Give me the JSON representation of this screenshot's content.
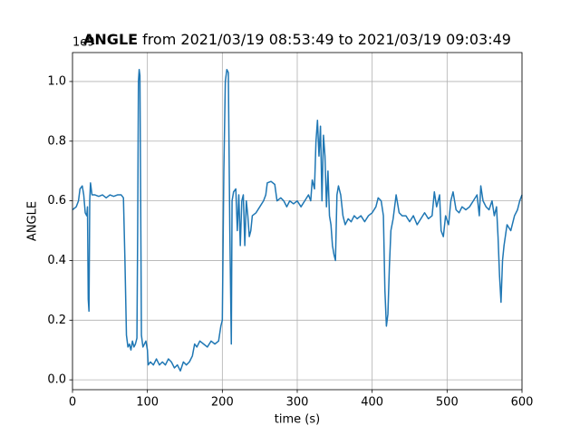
{
  "chart_data": {
    "type": "line",
    "title": "ANGLE",
    "title_suffix": "from 2021/03/19 08:53:49 to 2021/03/19 09:03:49",
    "offset_text": "1e9",
    "x_label": "time (s)",
    "y_label": "ANGLE",
    "xlim": [
      0,
      600
    ],
    "xticks": [
      0,
      100,
      200,
      300,
      400,
      500,
      600
    ],
    "ylim": [
      -0.033,
      1.097
    ],
    "yticks": [
      {
        "value": 0,
        "label": "0.0"
      },
      0.2,
      0.4,
      0.6,
      0.8,
      {
        "value": 1,
        "label": "1.0"
      }
    ],
    "grid": true,
    "series": [
      {
        "name": "ANGLE",
        "color": "#1f77b4",
        "x": [
          0,
          5,
          8,
          10,
          13,
          15,
          17,
          19,
          20,
          21,
          22,
          23,
          24,
          26,
          30,
          35,
          40,
          45,
          50,
          55,
          60,
          65,
          68,
          70,
          72,
          74,
          76,
          78,
          80,
          82,
          84,
          86,
          87,
          88,
          89,
          90,
          91,
          92,
          94,
          96,
          98,
          100,
          101,
          104,
          108,
          112,
          116,
          120,
          124,
          128,
          132,
          136,
          140,
          144,
          148,
          152,
          156,
          160,
          163,
          166,
          170,
          175,
          180,
          185,
          190,
          195,
          198,
          200,
          202,
          204,
          206,
          208,
          210,
          212,
          213,
          215,
          218,
          220,
          222,
          224,
          226,
          228,
          230,
          232,
          234,
          236,
          238,
          240,
          245,
          250,
          255,
          258,
          260,
          265,
          270,
          273,
          278,
          282,
          286,
          290,
          295,
          300,
          305,
          310,
          315,
          318,
          320,
          323,
          325,
          327,
          329,
          331,
          333,
          335,
          337,
          339,
          341,
          343,
          345,
          347,
          349,
          351,
          353,
          355,
          358,
          361,
          364,
          368,
          372,
          376,
          380,
          385,
          390,
          395,
          400,
          405,
          408,
          412,
          415,
          417,
          419,
          421,
          423,
          425,
          428,
          432,
          436,
          440,
          445,
          450,
          455,
          460,
          465,
          470,
          475,
          480,
          483,
          486,
          490,
          492,
          495,
          498,
          502,
          505,
          508,
          512,
          516,
          520,
          525,
          530,
          535,
          540,
          543,
          545,
          548,
          552,
          556,
          560,
          563,
          566,
          568,
          570,
          572,
          574,
          576,
          580,
          585,
          590,
          594,
          597,
          600
        ],
        "values": [
          0.57,
          0.58,
          0.6,
          0.64,
          0.65,
          0.62,
          0.56,
          0.55,
          0.58,
          0.27,
          0.23,
          0.6,
          0.66,
          0.62,
          0.62,
          0.615,
          0.62,
          0.61,
          0.62,
          0.615,
          0.62,
          0.62,
          0.61,
          0.4,
          0.15,
          0.11,
          0.12,
          0.1,
          0.13,
          0.11,
          0.12,
          0.14,
          0.5,
          1.0,
          1.04,
          1.02,
          0.6,
          0.15,
          0.11,
          0.12,
          0.13,
          0.1,
          0.05,
          0.06,
          0.05,
          0.07,
          0.05,
          0.06,
          0.05,
          0.07,
          0.06,
          0.04,
          0.05,
          0.03,
          0.06,
          0.05,
          0.06,
          0.08,
          0.12,
          0.11,
          0.13,
          0.12,
          0.11,
          0.13,
          0.12,
          0.13,
          0.18,
          0.2,
          0.7,
          1.0,
          1.04,
          1.03,
          0.5,
          0.12,
          0.6,
          0.63,
          0.64,
          0.5,
          0.62,
          0.45,
          0.6,
          0.62,
          0.45,
          0.6,
          0.55,
          0.48,
          0.5,
          0.55,
          0.56,
          0.58,
          0.6,
          0.62,
          0.66,
          0.665,
          0.655,
          0.6,
          0.61,
          0.6,
          0.58,
          0.6,
          0.59,
          0.6,
          0.58,
          0.6,
          0.62,
          0.6,
          0.67,
          0.64,
          0.8,
          0.87,
          0.75,
          0.85,
          0.6,
          0.82,
          0.75,
          0.58,
          0.7,
          0.55,
          0.52,
          0.45,
          0.42,
          0.4,
          0.62,
          0.65,
          0.62,
          0.55,
          0.52,
          0.54,
          0.53,
          0.55,
          0.54,
          0.55,
          0.53,
          0.55,
          0.56,
          0.58,
          0.61,
          0.6,
          0.55,
          0.3,
          0.18,
          0.22,
          0.38,
          0.5,
          0.54,
          0.62,
          0.56,
          0.55,
          0.55,
          0.53,
          0.55,
          0.52,
          0.54,
          0.56,
          0.54,
          0.55,
          0.63,
          0.58,
          0.62,
          0.5,
          0.48,
          0.55,
          0.52,
          0.6,
          0.63,
          0.57,
          0.56,
          0.58,
          0.57,
          0.58,
          0.6,
          0.62,
          0.55,
          0.65,
          0.6,
          0.58,
          0.57,
          0.6,
          0.55,
          0.58,
          0.48,
          0.35,
          0.26,
          0.4,
          0.45,
          0.52,
          0.5,
          0.55,
          0.57,
          0.6,
          0.62
        ]
      }
    ]
  }
}
